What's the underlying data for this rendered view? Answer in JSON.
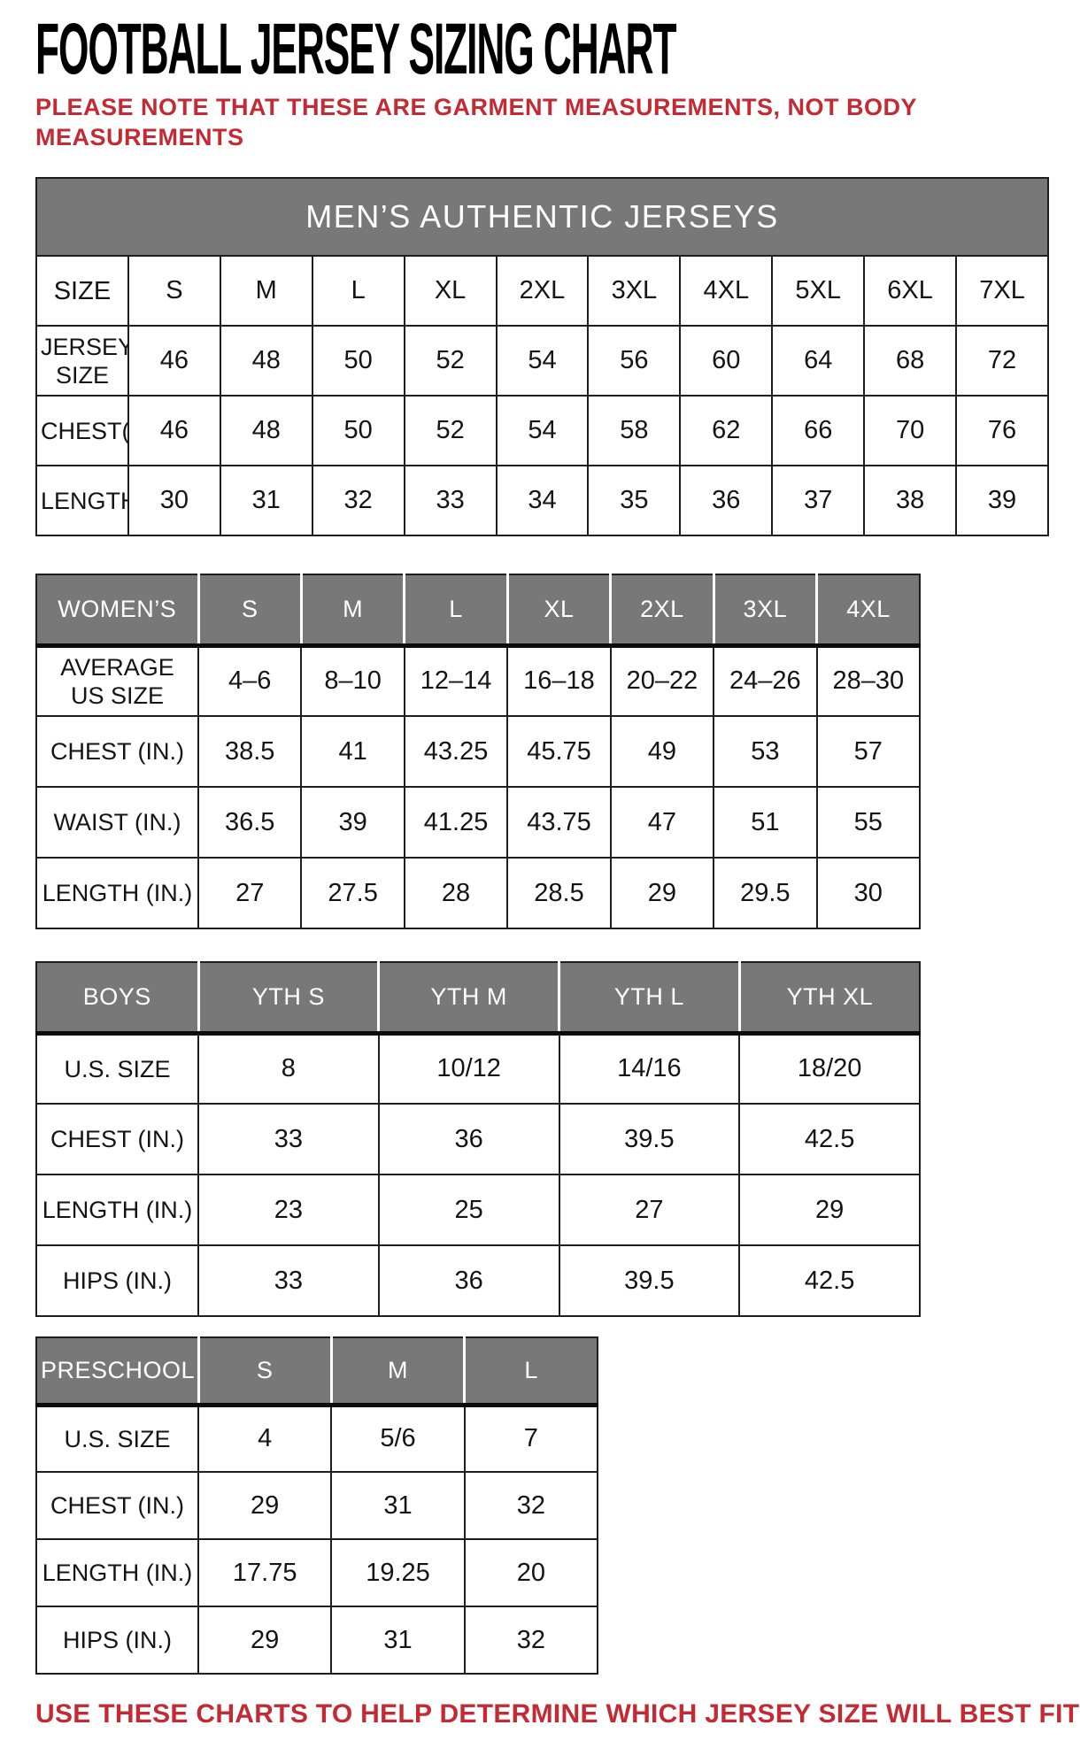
{
  "page": {
    "title": "FOOTBALL JERSEY SIZING CHART",
    "note": "PLEASE NOTE THAT THESE ARE GARMENT MEASUREMENTS, NOT BODY\nMEASUREMENTS",
    "footer": "USE THESE CHARTS TO HELP DETERMINE WHICH JERSEY SIZE WILL BEST FIT YOU.",
    "colors": {
      "accent_red": "#c32a33",
      "header_gray": "#787878",
      "border_black": "#1e1e1e"
    }
  },
  "tables": [
    {
      "name": "mens",
      "band_title": "MEN’S AUTHENTIC JERSEYS",
      "header_variant": "plain",
      "columns": [
        "SIZE",
        "S",
        "M",
        "L",
        "XL",
        "2XL",
        "3XL",
        "4XL",
        "5XL",
        "6XL",
        "7XL"
      ],
      "rows": [
        {
          "label": "JERSEY SIZE",
          "values": [
            "46",
            "48",
            "50",
            "52",
            "54",
            "56",
            "60",
            "64",
            "68",
            "72"
          ]
        },
        {
          "label": "CHEST(IN.)",
          "values": [
            "46",
            "48",
            "50",
            "52",
            "54",
            "58",
            "62",
            "66",
            "70",
            "76"
          ]
        },
        {
          "label": "LENGTH(IN.)",
          "values": [
            "30",
            "31",
            "32",
            "33",
            "34",
            "35",
            "36",
            "37",
            "38",
            "39"
          ]
        }
      ]
    },
    {
      "name": "womens",
      "band_title": null,
      "header_variant": "gray",
      "columns": [
        "WOMEN’S",
        "S",
        "M",
        "L",
        "XL",
        "2XL",
        "3XL",
        "4XL"
      ],
      "rows": [
        {
          "label": "AVERAGE\nUS SIZE",
          "values": [
            "4–6",
            "8–10",
            "12–14",
            "16–18",
            "20–22",
            "24–26",
            "28–30"
          ]
        },
        {
          "label": "CHEST (IN.)",
          "values": [
            "38.5",
            "41",
            "43.25",
            "45.75",
            "49",
            "53",
            "57"
          ]
        },
        {
          "label": "WAIST (IN.)",
          "values": [
            "36.5",
            "39",
            "41.25",
            "43.75",
            "47",
            "51",
            "55"
          ]
        },
        {
          "label": "LENGTH (IN.)",
          "values": [
            "27",
            "27.5",
            "28",
            "28.5",
            "29",
            "29.5",
            "30"
          ]
        }
      ]
    },
    {
      "name": "boys",
      "band_title": null,
      "header_variant": "gray",
      "columns": [
        "BOYS",
        "YTH S",
        "YTH M",
        "YTH L",
        "YTH XL"
      ],
      "rows": [
        {
          "label": "U.S. SIZE",
          "values": [
            "8",
            "10/12",
            "14/16",
            "18/20"
          ]
        },
        {
          "label": "CHEST (IN.)",
          "values": [
            "33",
            "36",
            "39.5",
            "42.5"
          ]
        },
        {
          "label": "LENGTH (IN.)",
          "values": [
            "23",
            "25",
            "27",
            "29"
          ]
        },
        {
          "label": "HIPS (IN.)",
          "values": [
            "33",
            "36",
            "39.5",
            "42.5"
          ]
        }
      ]
    },
    {
      "name": "preschool",
      "band_title": null,
      "header_variant": "gray",
      "columns": [
        "PRESCHOOL",
        "S",
        "M",
        "L"
      ],
      "rows": [
        {
          "label": "U.S. SIZE",
          "values": [
            "4",
            "5/6",
            "7"
          ]
        },
        {
          "label": "CHEST (IN.)",
          "values": [
            "29",
            "31",
            "32"
          ]
        },
        {
          "label": "LENGTH (IN.)",
          "values": [
            "17.75",
            "19.25",
            "20"
          ]
        },
        {
          "label": "HIPS (IN.)",
          "values": [
            "29",
            "31",
            "32"
          ]
        }
      ]
    }
  ]
}
